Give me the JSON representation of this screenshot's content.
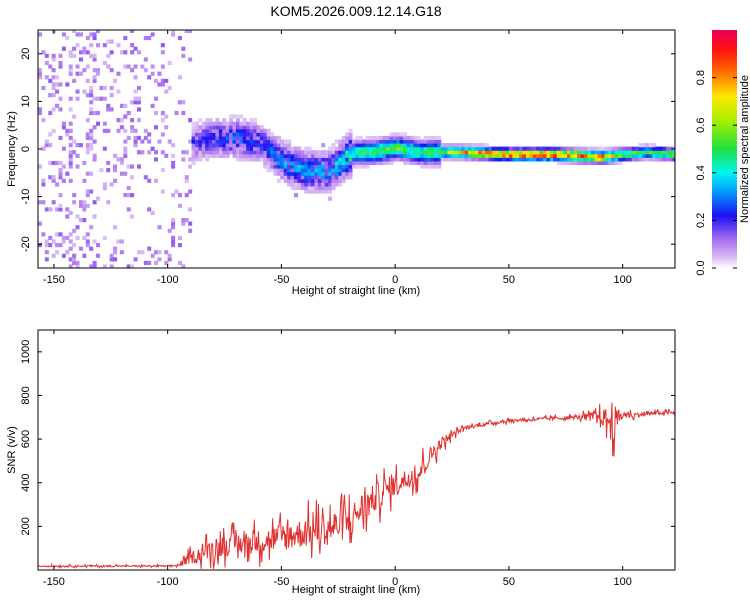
{
  "title": "KOM5.2026.009.12.14.G18",
  "chart_data": [
    {
      "type": "heatmap",
      "title": "KOM5.2026.009.12.14.G18",
      "xlabel": "Height of straight line (km)",
      "ylabel": "Frequency (Hz)",
      "xlim": [
        -157,
        123
      ],
      "ylim": [
        -25,
        25
      ],
      "xticks": [
        -150,
        -100,
        -50,
        0,
        50,
        100
      ],
      "xtick_labels": [
        "-150",
        "-100",
        "-50",
        "0",
        "50",
        "100"
      ],
      "yticks": [
        -20,
        -10,
        0,
        10,
        20
      ],
      "ytick_labels": [
        "-20",
        "-10",
        "0",
        "10",
        "20"
      ],
      "colorbar": {
        "label": "Normalized spectral amplitude",
        "range": [
          0,
          1
        ],
        "ticks": [
          0.0,
          0.2,
          0.4,
          0.6,
          0.8
        ],
        "tick_labels": [
          "0.0",
          "0.2",
          "0.4",
          "0.6",
          "0.8"
        ]
      },
      "ridge": {
        "height_km": [
          -90,
          -80,
          -70,
          -60,
          -50,
          -40,
          -30,
          -22,
          -18,
          -10,
          0,
          10,
          20,
          30,
          50,
          70,
          90,
          100,
          110,
          123
        ],
        "frequency_hz": [
          1,
          2,
          2,
          1,
          -3,
          -5,
          -5,
          -2,
          -1,
          -1,
          0,
          -1,
          -1,
          -1,
          -1.5,
          -1.5,
          -2,
          -1.5,
          -1,
          -1.5
        ],
        "amplitude": [
          0.2,
          0.25,
          0.3,
          0.25,
          0.35,
          0.35,
          0.35,
          0.45,
          0.5,
          0.55,
          0.55,
          0.5,
          0.6,
          0.8,
          0.88,
          0.92,
          0.85,
          0.6,
          0.55,
          0.55
        ]
      }
    },
    {
      "type": "line",
      "xlabel": "Height of straight line (km)",
      "ylabel": "SNR (v/v)",
      "xlim": [
        -157,
        123
      ],
      "ylim": [
        0,
        1100
      ],
      "xticks": [
        -150,
        -100,
        -50,
        0,
        50,
        100
      ],
      "xtick_labels": [
        "-150",
        "-100",
        "-50",
        "0",
        "50",
        "100"
      ],
      "yticks": [
        200,
        400,
        600,
        800,
        1000
      ],
      "ytick_labels": [
        "200",
        "400",
        "600",
        "800",
        "1000"
      ],
      "color": "#e03030",
      "series": [
        {
          "name": "SNR",
          "x": [
            -157,
            -140,
            -120,
            -100,
            -95,
            -90,
            -80,
            -70,
            -60,
            -50,
            -40,
            -30,
            -20,
            -15,
            -10,
            -5,
            0,
            5,
            10,
            15,
            20,
            25,
            30,
            40,
            50,
            60,
            70,
            80,
            90,
            93,
            95,
            97,
            100,
            105,
            110,
            115,
            123
          ],
          "mean": [
            18,
            18,
            18,
            18,
            22,
            55,
            100,
            120,
            130,
            150,
            170,
            190,
            220,
            280,
            320,
            360,
            390,
            420,
            440,
            520,
            580,
            620,
            650,
            670,
            685,
            690,
            695,
            700,
            705,
            690,
            680,
            690,
            710,
            710,
            715,
            720,
            720
          ],
          "spread": [
            8,
            8,
            8,
            8,
            10,
            60,
            100,
            110,
            120,
            140,
            150,
            160,
            170,
            160,
            150,
            130,
            110,
            100,
            110,
            90,
            60,
            30,
            20,
            15,
            15,
            15,
            18,
            20,
            60,
            120,
            250,
            120,
            40,
            25,
            20,
            18,
            18
          ]
        }
      ]
    }
  ]
}
